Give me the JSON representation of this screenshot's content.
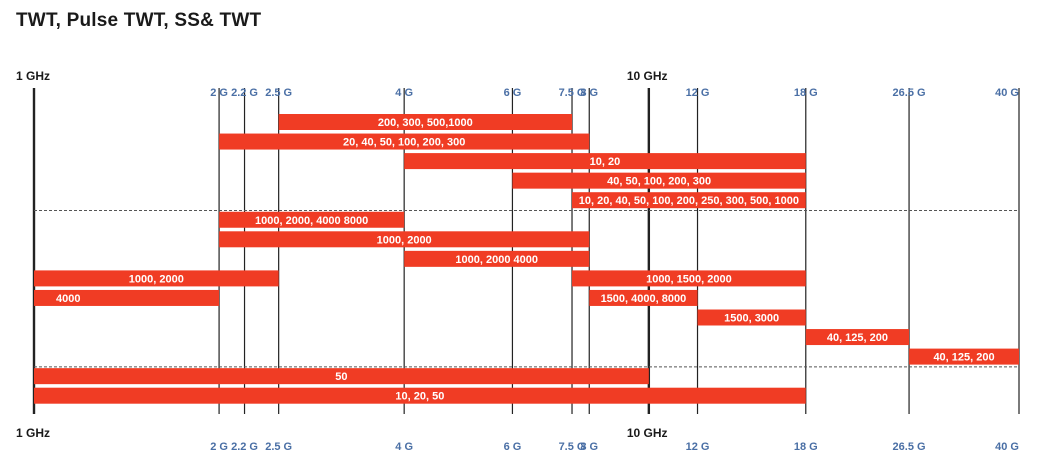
{
  "chart_data": {
    "type": "bar",
    "orientation": "horizontal-range",
    "title": "TWT, Pulse TWT, SS& TWT",
    "x_scale": "log",
    "xlim": [
      1,
      40
    ],
    "major_ticks": [
      {
        "label": "1 GHz",
        "value": 1
      },
      {
        "label": "10 GHz",
        "value": 10
      }
    ],
    "minor_ticks": [
      {
        "label": "2 G",
        "value": 2
      },
      {
        "label": "2.2 G",
        "value": 2.2
      },
      {
        "label": "2.5 G",
        "value": 2.5
      },
      {
        "label": "4 G",
        "value": 4
      },
      {
        "label": "6 G",
        "value": 6
      },
      {
        "label": "7.5 G",
        "value": 7.5
      },
      {
        "label": "8 G",
        "value": 8
      },
      {
        "label": "12 G",
        "value": 12
      },
      {
        "label": "18 G",
        "value": 18
      },
      {
        "label": "26.5 G",
        "value": 26.5
      },
      {
        "label": "40 G",
        "value": 40
      }
    ],
    "bars": [
      {
        "start": 2.5,
        "end": 7.5,
        "row": 0,
        "label": "200, 300, 500,1000",
        "align": "center"
      },
      {
        "start": 2,
        "end": 8,
        "row": 1,
        "label": "20, 40, 50, 100, 200, 300",
        "align": "center"
      },
      {
        "start": 4,
        "end": 18,
        "row": 2,
        "label": "10, 20",
        "align": "center"
      },
      {
        "start": 6,
        "end": 18,
        "row": 3,
        "label": "40, 50, 100, 200, 300",
        "align": "center"
      },
      {
        "start": 7.5,
        "end": 18,
        "row": 4,
        "label": "10, 20, 40, 50, 100, 200, 250, 300, 500, 1000",
        "align": "center"
      },
      {
        "start": 2,
        "end": 4,
        "row": 5,
        "label": "1000, 2000, 4000 8000",
        "align": "center"
      },
      {
        "start": 2,
        "end": 8,
        "row": 6,
        "label": "1000, 2000",
        "align": "center"
      },
      {
        "start": 4,
        "end": 8,
        "row": 7,
        "label": "1000, 2000 4000",
        "align": "center"
      },
      {
        "start": 1,
        "end": 2.5,
        "row": 8,
        "label": "1000, 2000",
        "align": "center"
      },
      {
        "start": 7.5,
        "end": 18,
        "row": 8,
        "label": "1000, 1500, 2000",
        "align": "center"
      },
      {
        "start": 1,
        "end": 2,
        "row": 9,
        "label": "4000",
        "align": "left"
      },
      {
        "start": 8,
        "end": 12,
        "row": 9,
        "label": "1500, 4000, 8000",
        "align": "center"
      },
      {
        "start": 12,
        "end": 18,
        "row": 10,
        "label": "1500, 3000",
        "align": "center"
      },
      {
        "start": 18,
        "end": 26.5,
        "row": 11,
        "label": "40, 125, 200",
        "align": "center"
      },
      {
        "start": 26.5,
        "end": 40,
        "row": 12,
        "label": "40, 125, 200",
        "align": "center"
      },
      {
        "start": 1,
        "end": 10,
        "row": 13,
        "label": "50",
        "align": "center"
      },
      {
        "start": 1,
        "end": 18,
        "row": 14,
        "label": "10, 20, 50",
        "align": "center"
      }
    ],
    "group_separators_after_rows": [
      4,
      12
    ],
    "colors": {
      "bar": "#f03c24",
      "grid": "#222222",
      "tick_label": "#4a6fa5",
      "separator": "#555555"
    }
  }
}
